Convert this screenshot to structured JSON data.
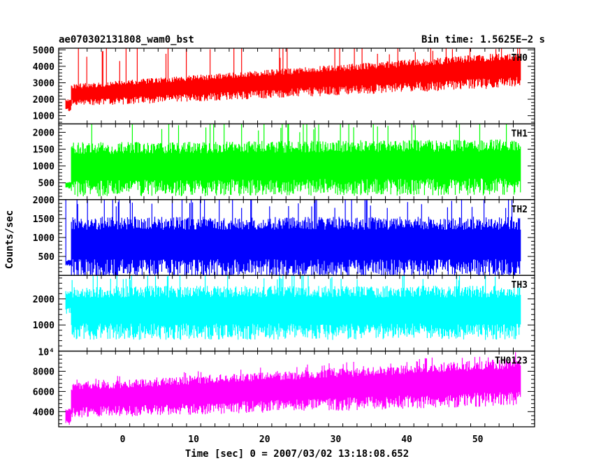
{
  "chart_data": {
    "type": "line",
    "title_left": "ae070302131808_wam0_bst",
    "title_right": "Bin time: 1.5625E−2 s",
    "xlabel": "Time [sec] 0 = 2007/03/02 13:18:08.652",
    "ylabel": "Counts/sec",
    "xlim": [
      -9,
      58
    ],
    "x_range_data": [
      -8,
      56
    ],
    "xticks": [
      0,
      10,
      20,
      30,
      40,
      50
    ],
    "panels": [
      {
        "name": "TH0",
        "color": "#ff0000",
        "ylim": [
          500,
          5100
        ],
        "yticks": [
          1000,
          2000,
          3000,
          4000,
          5000
        ],
        "start_level": 1500,
        "base_start": 1700,
        "base_end": 3000,
        "top_start": 2900,
        "top_end": 4900,
        "spikes_to_top": true
      },
      {
        "name": "TH1",
        "color": "#00ff00",
        "ylim": [
          0,
          2250
        ],
        "yticks": [
          500,
          1000,
          1500,
          2000
        ],
        "start_level": 400,
        "base_start": 300,
        "base_end": 350,
        "top_start": 1700,
        "top_end": 1800,
        "spikes_to_top": true
      },
      {
        "name": "TH2",
        "color": "#0000ff",
        "ylim": [
          0,
          2000
        ],
        "yticks": [
          500,
          1000,
          1500,
          2000
        ],
        "start_level": 300,
        "base_start": 150,
        "base_end": 150,
        "top_start": 1550,
        "top_end": 1550,
        "spikes_to_top": true
      },
      {
        "name": "TH3",
        "color": "#00ffff",
        "ylim": [
          0,
          2900
        ],
        "yticks": [
          1000,
          2000
        ],
        "start_level": 1700,
        "base_start": 700,
        "base_end": 700,
        "top_start": 2500,
        "top_end": 2500,
        "spikes_to_top": true
      },
      {
        "name": "TH0123",
        "color": "#ff00ff",
        "ylim": [
          2500,
          10000
        ],
        "yticks": [
          4000,
          6000,
          8000
        ],
        "y_top_label": "10⁴",
        "start_level": 3200,
        "base_start": 3800,
        "base_end": 5200,
        "top_start": 6800,
        "top_end": 9300,
        "spikes_to_top": false
      }
    ]
  }
}
